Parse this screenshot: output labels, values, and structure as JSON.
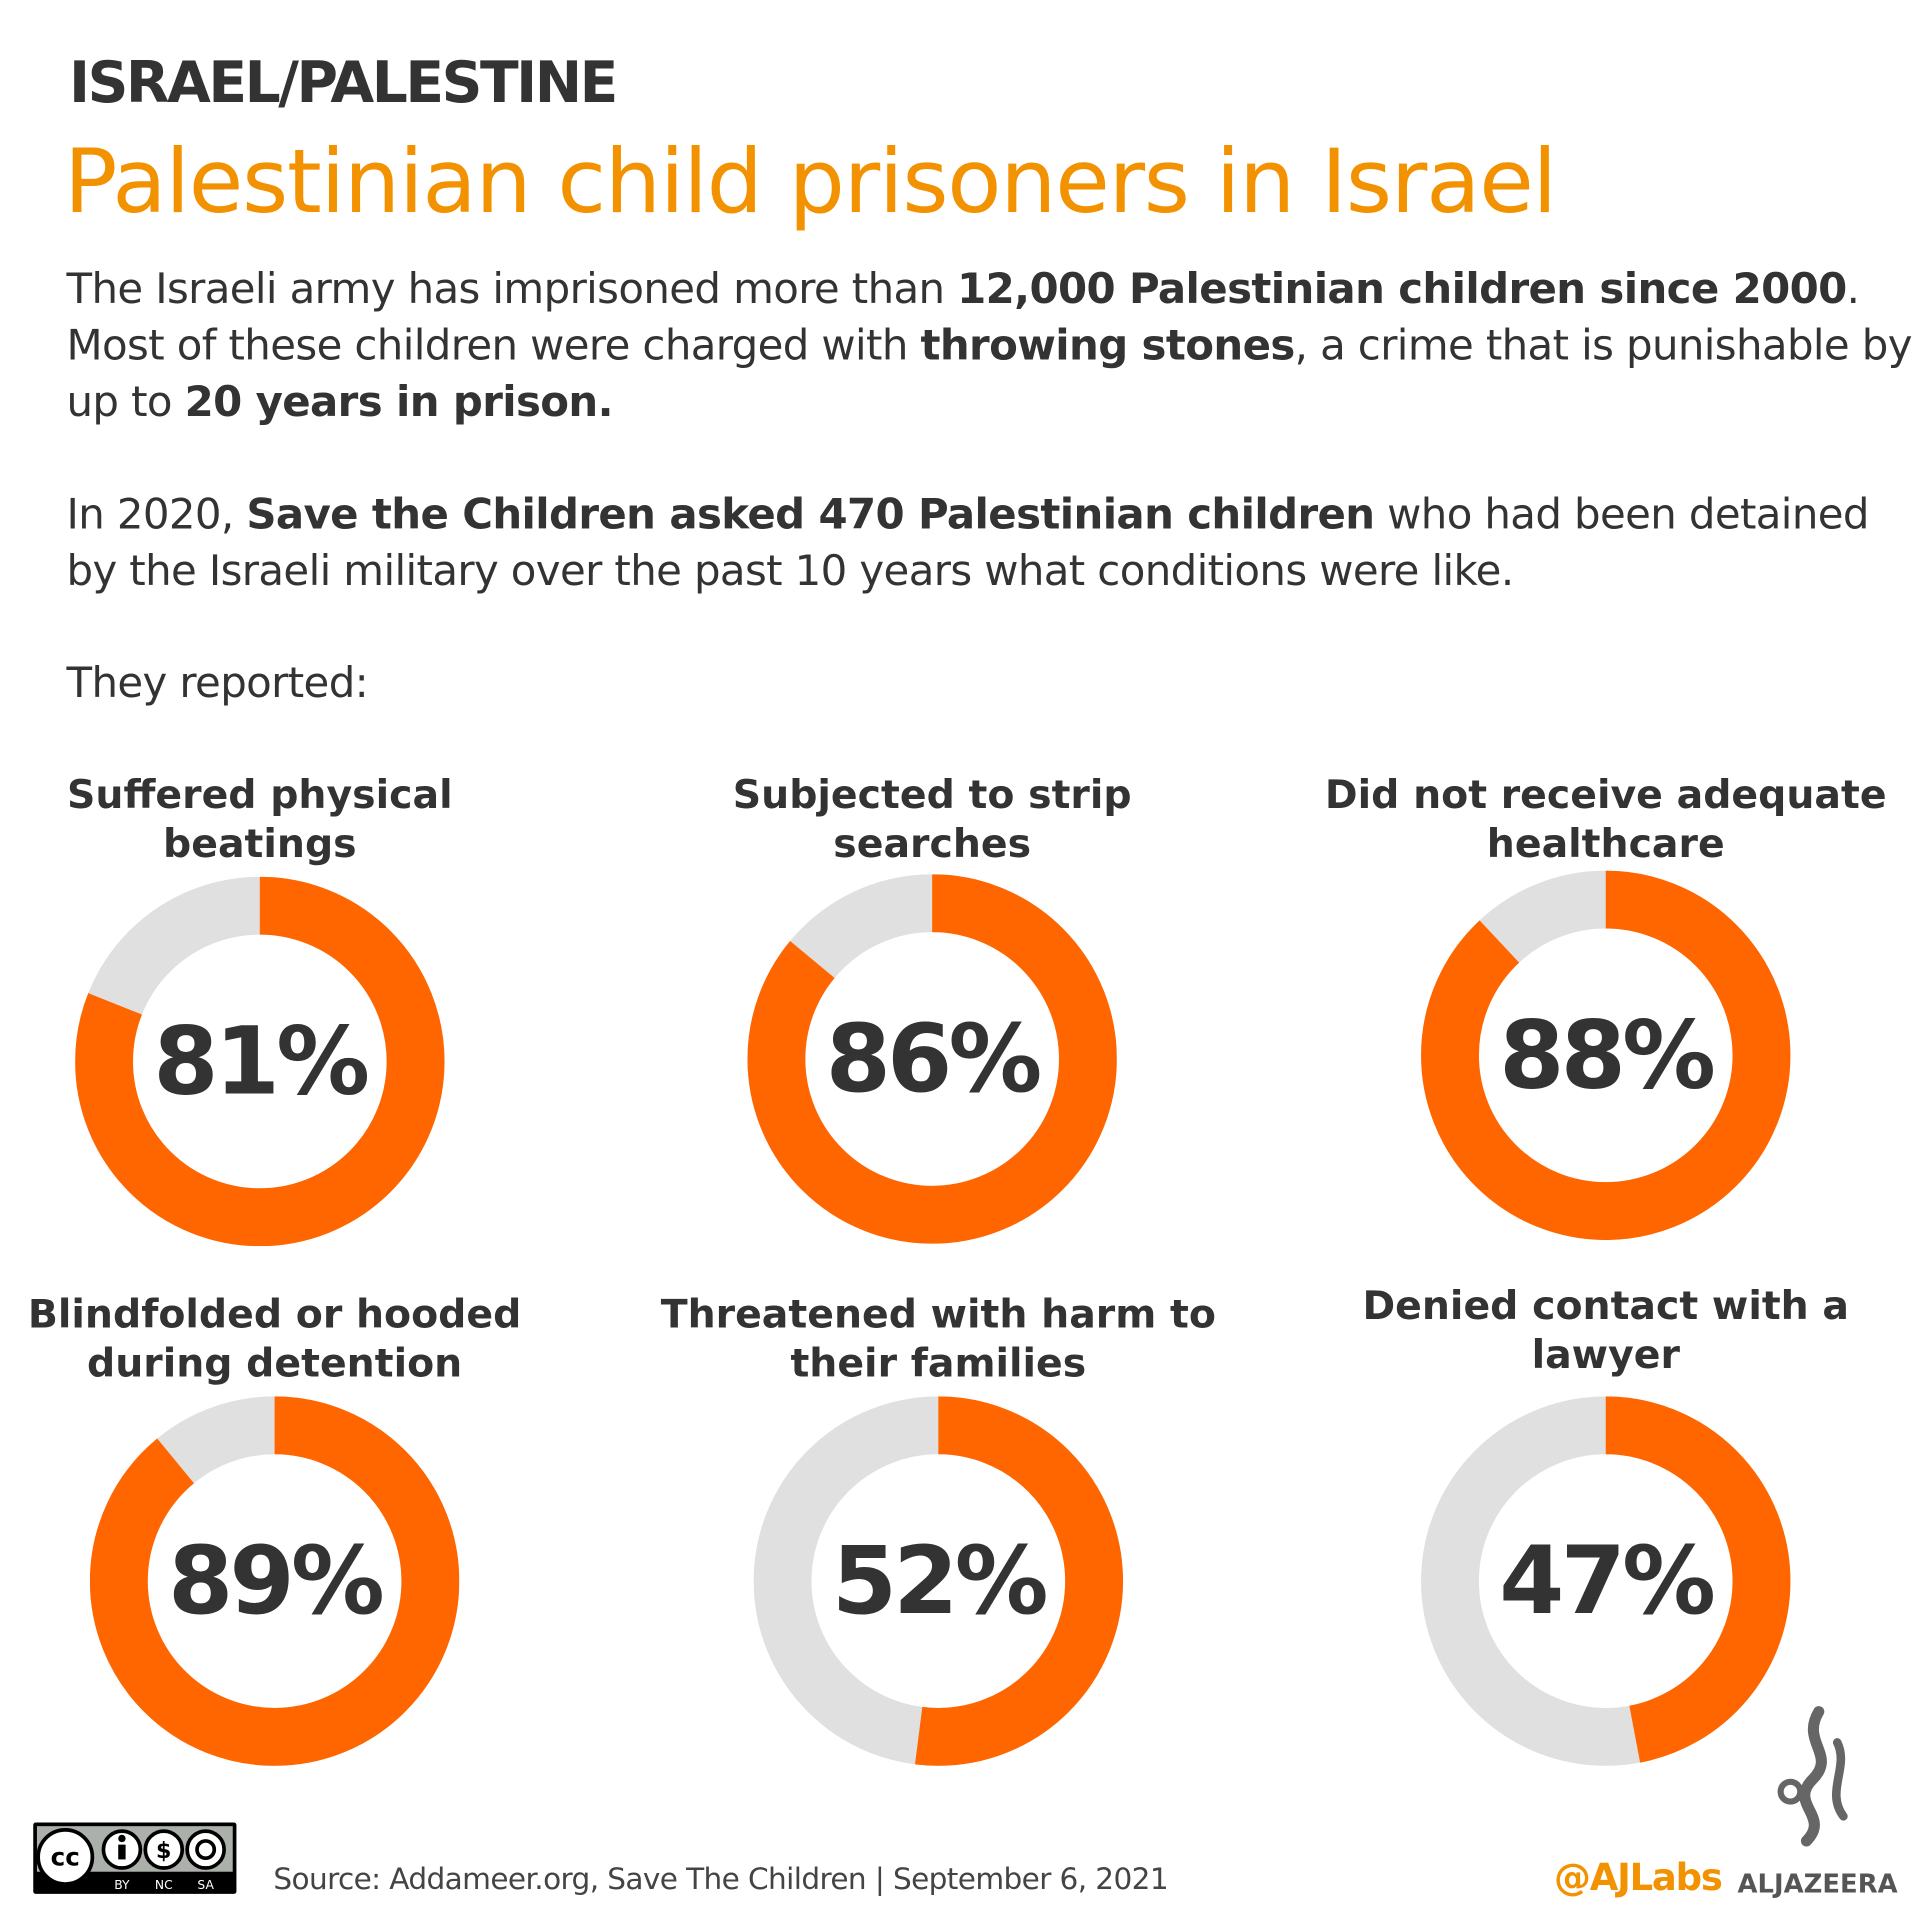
{
  "kicker": "ISRAEL/PALESTINE",
  "title": "Palestinian child prisoners in Israel",
  "intro": {
    "p1": [
      {
        "t": "The Israeli army has imprisoned more than ",
        "b": false
      },
      {
        "t": "12,000 Palestinian children since 2000",
        "b": true
      },
      {
        "t": ". Most of these children were charged with ",
        "b": false
      },
      {
        "t": "throwing stones",
        "b": true
      },
      {
        "t": ", a crime that is punishable by up to ",
        "b": false
      },
      {
        "t": "20 years in prison.",
        "b": true
      }
    ],
    "p2": [
      {
        "t": "In 2020, ",
        "b": false
      },
      {
        "t": "Save the Children asked 470 Palestinian children",
        "b": true
      },
      {
        "t": " who had been detained by the Israeli military over the past 10 years what conditions were like.",
        "b": false
      }
    ],
    "p3": "They reported:"
  },
  "chart_data": {
    "type": "pie",
    "variant": "donut",
    "colors": {
      "value": "#ff6600",
      "remainder": "#e0e0e0"
    },
    "items": [
      {
        "label": "Suffered physical beatings",
        "value": 81,
        "display": "81%"
      },
      {
        "label": "Subjected to strip searches",
        "value": 86,
        "display": "86%"
      },
      {
        "label": "Did not receive adequate healthcare",
        "value": 88,
        "display": "88%"
      },
      {
        "label": "Blindfolded or hooded during detention",
        "value": 89,
        "display": "89%"
      },
      {
        "label": "Threatened with harm to their families",
        "value": 52,
        "display": "52%"
      },
      {
        "label": "Denied contact with a lawyer",
        "value": 47,
        "display": "47%"
      }
    ]
  },
  "footer": {
    "license": {
      "badges": [
        "BY",
        "NC",
        "SA"
      ],
      "cc": "cc"
    },
    "source": "Source: Addameer.org, Save The Children | September 6, 2021",
    "handle": "@AJLabs",
    "brand": "ALJAZEERA"
  },
  "colors": {
    "title": "#f39200",
    "accent": "#ff6600",
    "grey": "#e0e0e0",
    "text": "#333333"
  }
}
